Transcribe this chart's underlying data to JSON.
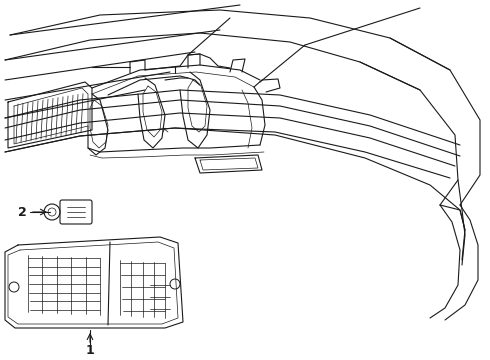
{
  "bg_color": "#ffffff",
  "line_color": "#1a1a1a",
  "fig_width": 4.9,
  "fig_height": 3.6,
  "dpi": 100,
  "label1_text": "1",
  "label2_text": "2"
}
